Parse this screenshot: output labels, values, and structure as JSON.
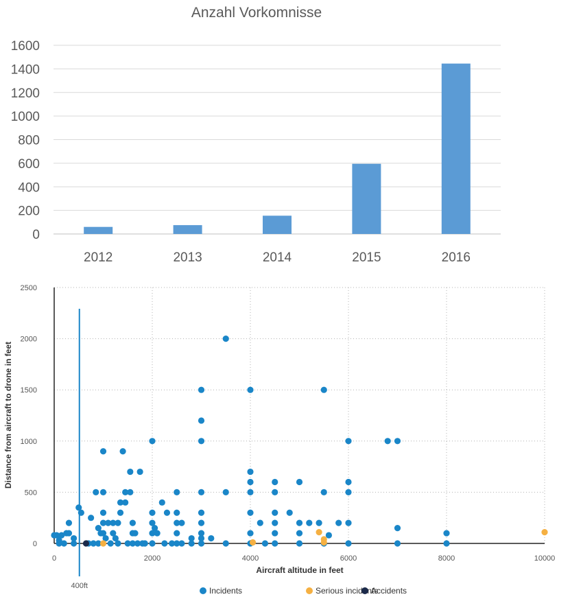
{
  "chart_data": [
    {
      "type": "bar",
      "title": "Anzahl Vorkomnisse",
      "categories": [
        "2012",
        "2013",
        "2014",
        "2015",
        "2016"
      ],
      "values": [
        60,
        75,
        155,
        595,
        1445
      ],
      "ylim": [
        0,
        1600
      ],
      "yticks": [
        "0",
        "200",
        "400",
        "600",
        "800",
        "1000",
        "1200",
        "1400",
        "1600"
      ],
      "color": "#5b9bd5",
      "grid": true
    },
    {
      "type": "scatter",
      "xlabel": "Aircraft altitude in feet",
      "ylabel": "Distance from aircraft to drone in feet",
      "xlim": [
        0,
        10000
      ],
      "ylim": [
        0,
        2500
      ],
      "xticks": [
        "0",
        "2000",
        "4000",
        "6000",
        "8000",
        "10000"
      ],
      "yticks": [
        "0",
        "500",
        "1000",
        "1500",
        "2000",
        "2500"
      ],
      "grid": "dotted",
      "legend_position": "bottom",
      "reference_line": {
        "x": 500,
        "label": "400ft"
      },
      "series": [
        {
          "name": "Incidents",
          "color": "#1a86c8",
          "points": [
            [
              0,
              80
            ],
            [
              50,
              80
            ],
            [
              100,
              30
            ],
            [
              100,
              0
            ],
            [
              150,
              80
            ],
            [
              200,
              0
            ],
            [
              250,
              100
            ],
            [
              300,
              200
            ],
            [
              300,
              100
            ],
            [
              400,
              50
            ],
            [
              400,
              0
            ],
            [
              500,
              350
            ],
            [
              550,
              300
            ],
            [
              700,
              0
            ],
            [
              750,
              250
            ],
            [
              800,
              0
            ],
            [
              850,
              500
            ],
            [
              900,
              0
            ],
            [
              900,
              150
            ],
            [
              950,
              100
            ],
            [
              1000,
              900
            ],
            [
              1000,
              500
            ],
            [
              1000,
              300
            ],
            [
              1000,
              200
            ],
            [
              1000,
              100
            ],
            [
              1050,
              50
            ],
            [
              1100,
              200
            ],
            [
              1150,
              0
            ],
            [
              1200,
              200
            ],
            [
              1200,
              100
            ],
            [
              1250,
              50
            ],
            [
              1300,
              0
            ],
            [
              1300,
              200
            ],
            [
              1350,
              400
            ],
            [
              1350,
              300
            ],
            [
              1400,
              900
            ],
            [
              1450,
              500
            ],
            [
              1450,
              400
            ],
            [
              1500,
              0
            ],
            [
              1550,
              700
            ],
            [
              1550,
              500
            ],
            [
              1600,
              0
            ],
            [
              1600,
              200
            ],
            [
              1600,
              100
            ],
            [
              1650,
              100
            ],
            [
              1700,
              0
            ],
            [
              1750,
              700
            ],
            [
              1800,
              0
            ],
            [
              1850,
              0
            ],
            [
              2000,
              1000
            ],
            [
              2000,
              300
            ],
            [
              2000,
              200
            ],
            [
              2000,
              100
            ],
            [
              2000,
              0
            ],
            [
              2050,
              150
            ],
            [
              2100,
              100
            ],
            [
              2200,
              400
            ],
            [
              2250,
              0
            ],
            [
              2300,
              300
            ],
            [
              2400,
              0
            ],
            [
              2500,
              500
            ],
            [
              2500,
              300
            ],
            [
              2500,
              200
            ],
            [
              2500,
              100
            ],
            [
              2500,
              0
            ],
            [
              2600,
              200
            ],
            [
              2600,
              0
            ],
            [
              2800,
              50
            ],
            [
              2800,
              0
            ],
            [
              3000,
              1500
            ],
            [
              3000,
              1200
            ],
            [
              3000,
              1000
            ],
            [
              3000,
              500
            ],
            [
              3000,
              300
            ],
            [
              3000,
              200
            ],
            [
              3000,
              100
            ],
            [
              3000,
              50
            ],
            [
              3000,
              0
            ],
            [
              3200,
              50
            ],
            [
              3500,
              2000
            ],
            [
              3500,
              500
            ],
            [
              3500,
              0
            ],
            [
              4000,
              1500
            ],
            [
              4000,
              700
            ],
            [
              4000,
              600
            ],
            [
              4000,
              500
            ],
            [
              4000,
              300
            ],
            [
              4000,
              100
            ],
            [
              4000,
              0
            ],
            [
              4200,
              200
            ],
            [
              4300,
              0
            ],
            [
              4500,
              600
            ],
            [
              4500,
              500
            ],
            [
              4500,
              300
            ],
            [
              4500,
              200
            ],
            [
              4500,
              100
            ],
            [
              4500,
              0
            ],
            [
              4800,
              300
            ],
            [
              5000,
              600
            ],
            [
              5000,
              200
            ],
            [
              5000,
              100
            ],
            [
              5000,
              0
            ],
            [
              5200,
              200
            ],
            [
              5400,
              200
            ],
            [
              5500,
              1500
            ],
            [
              5500,
              500
            ],
            [
              5500,
              0
            ],
            [
              5600,
              80
            ],
            [
              5800,
              200
            ],
            [
              6000,
              1000
            ],
            [
              6000,
              600
            ],
            [
              6000,
              500
            ],
            [
              6000,
              200
            ],
            [
              6000,
              0
            ],
            [
              6800,
              1000
            ],
            [
              7000,
              1000
            ],
            [
              7000,
              150
            ],
            [
              7000,
              0
            ],
            [
              8000,
              100
            ],
            [
              8000,
              0
            ]
          ]
        },
        {
          "name": "Serious incidents",
          "color": "#f5b042",
          "points": [
            [
              1000,
              0
            ],
            [
              4050,
              10
            ],
            [
              5400,
              110
            ],
            [
              5500,
              40
            ],
            [
              5500,
              10
            ],
            [
              10000,
              110
            ]
          ]
        },
        {
          "name": "Accidents",
          "color": "#1b2a4a",
          "points": [
            [
              650,
              0
            ]
          ]
        }
      ]
    }
  ]
}
